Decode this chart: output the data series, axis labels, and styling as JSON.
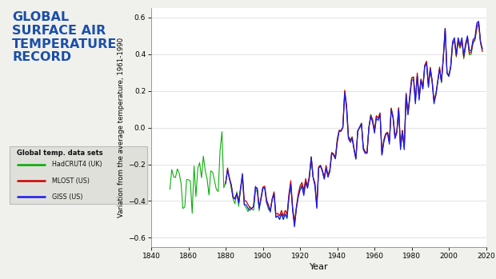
{
  "title_lines": [
    "GLOBAL",
    "SURFACE AIR",
    "TEMPERATURE",
    "RECORD"
  ],
  "title_color": "#1a4faa",
  "legend_title": "Global temp. data sets",
  "legend_entries": [
    "HadCRUT4 (UK)",
    "MLOST (US)",
    "GISS (US)"
  ],
  "legend_colors": [
    "#00aa00",
    "#cc0000",
    "#1a1aee"
  ],
  "ylabel": "Variation from the average temperature, 1961-1990",
  "xlabel": "Year",
  "xlim": [
    1840,
    2020
  ],
  "ylim": [
    -0.65,
    0.65
  ],
  "yticks": [
    -0.6,
    -0.4,
    -0.2,
    0.0,
    0.2,
    0.4,
    0.6
  ],
  "xticks": [
    1840,
    1860,
    1880,
    1900,
    1920,
    1940,
    1960,
    1980,
    2000,
    2020
  ],
  "bg_color": "#f0f0ec",
  "plot_bg": "#ffffff",
  "hadcrut4": {
    "years": [
      1850,
      1851,
      1852,
      1853,
      1854,
      1855,
      1856,
      1857,
      1858,
      1859,
      1860,
      1861,
      1862,
      1863,
      1864,
      1865,
      1866,
      1867,
      1868,
      1869,
      1870,
      1871,
      1872,
      1873,
      1874,
      1875,
      1876,
      1877,
      1878,
      1879,
      1880,
      1881,
      1882,
      1883,
      1884,
      1885,
      1886,
      1887,
      1888,
      1889,
      1890,
      1891,
      1892,
      1893,
      1894,
      1895,
      1896,
      1897,
      1898,
      1899,
      1900,
      1901,
      1902,
      1903,
      1904,
      1905,
      1906,
      1907,
      1908,
      1909,
      1910,
      1911,
      1912,
      1913,
      1914,
      1915,
      1916,
      1917,
      1918,
      1919,
      1920,
      1921,
      1922,
      1923,
      1924,
      1925,
      1926,
      1927,
      1928,
      1929,
      1930,
      1931,
      1932,
      1933,
      1934,
      1935,
      1936,
      1937,
      1938,
      1939,
      1940,
      1941,
      1942,
      1943,
      1944,
      1945,
      1946,
      1947,
      1948,
      1949,
      1950,
      1951,
      1952,
      1953,
      1954,
      1955,
      1956,
      1957,
      1958,
      1959,
      1960,
      1961,
      1962,
      1963,
      1964,
      1965,
      1966,
      1967,
      1968,
      1969,
      1970,
      1971,
      1972,
      1973,
      1974,
      1975,
      1976,
      1977,
      1978,
      1979,
      1980,
      1981,
      1982,
      1983,
      1984,
      1985,
      1986,
      1987,
      1988,
      1989,
      1990,
      1991,
      1992,
      1993,
      1994,
      1995,
      1996,
      1997,
      1998,
      1999,
      2000,
      2001,
      2002,
      2003,
      2004,
      2005,
      2006,
      2007,
      2008,
      2009,
      2010,
      2011,
      2012,
      2013,
      2014,
      2015,
      2016,
      2017,
      2018
    ],
    "values": [
      -0.336,
      -0.228,
      -0.268,
      -0.272,
      -0.225,
      -0.247,
      -0.303,
      -0.44,
      -0.433,
      -0.283,
      -0.284,
      -0.291,
      -0.467,
      -0.209,
      -0.376,
      -0.222,
      -0.191,
      -0.273,
      -0.155,
      -0.233,
      -0.279,
      -0.367,
      -0.236,
      -0.242,
      -0.289,
      -0.337,
      -0.348,
      -0.121,
      -0.022,
      -0.328,
      -0.297,
      -0.235,
      -0.276,
      -0.333,
      -0.388,
      -0.415,
      -0.349,
      -0.429,
      -0.339,
      -0.275,
      -0.422,
      -0.436,
      -0.458,
      -0.431,
      -0.444,
      -0.45,
      -0.349,
      -0.34,
      -0.453,
      -0.378,
      -0.326,
      -0.327,
      -0.407,
      -0.447,
      -0.452,
      -0.393,
      -0.355,
      -0.487,
      -0.481,
      -0.501,
      -0.467,
      -0.501,
      -0.473,
      -0.497,
      -0.377,
      -0.305,
      -0.449,
      -0.534,
      -0.444,
      -0.37,
      -0.33,
      -0.31,
      -0.356,
      -0.288,
      -0.329,
      -0.272,
      -0.167,
      -0.272,
      -0.31,
      -0.431,
      -0.217,
      -0.21,
      -0.235,
      -0.281,
      -0.218,
      -0.267,
      -0.233,
      -0.139,
      -0.147,
      -0.169,
      -0.066,
      -0.015,
      -0.016,
      0.001,
      0.198,
      0.121,
      -0.047,
      -0.065,
      -0.05,
      -0.117,
      -0.173,
      -0.016,
      0.005,
      0.024,
      -0.108,
      -0.131,
      -0.135,
      0.003,
      0.072,
      0.042,
      -0.023,
      0.061,
      0.052,
      0.074,
      -0.143,
      -0.073,
      -0.036,
      -0.027,
      -0.079,
      0.103,
      0.06,
      -0.046,
      -0.025,
      0.106,
      -0.101,
      -0.016,
      -0.111,
      0.183,
      0.073,
      0.172,
      0.269,
      0.272,
      0.145,
      0.292,
      0.159,
      0.257,
      0.214,
      0.335,
      0.357,
      0.228,
      0.322,
      0.249,
      0.143,
      0.174,
      0.246,
      0.319,
      0.244,
      0.376,
      0.539,
      0.293,
      0.279,
      0.323,
      0.451,
      0.469,
      0.385,
      0.468,
      0.432,
      0.468,
      0.374,
      0.441,
      0.487,
      0.396,
      0.4,
      0.459,
      0.476,
      0.539,
      0.57,
      0.459,
      0.427
    ]
  },
  "mlost": {
    "years": [
      1880,
      1881,
      1882,
      1883,
      1884,
      1885,
      1886,
      1887,
      1888,
      1889,
      1890,
      1891,
      1892,
      1893,
      1894,
      1895,
      1896,
      1897,
      1898,
      1899,
      1900,
      1901,
      1902,
      1903,
      1904,
      1905,
      1906,
      1907,
      1908,
      1909,
      1910,
      1911,
      1912,
      1913,
      1914,
      1915,
      1916,
      1917,
      1918,
      1919,
      1920,
      1921,
      1922,
      1923,
      1924,
      1925,
      1926,
      1927,
      1928,
      1929,
      1930,
      1931,
      1932,
      1933,
      1934,
      1935,
      1936,
      1937,
      1938,
      1939,
      1940,
      1941,
      1942,
      1943,
      1944,
      1945,
      1946,
      1947,
      1948,
      1949,
      1950,
      1951,
      1952,
      1953,
      1954,
      1955,
      1956,
      1957,
      1958,
      1959,
      1960,
      1961,
      1962,
      1963,
      1964,
      1965,
      1966,
      1967,
      1968,
      1969,
      1970,
      1971,
      1972,
      1973,
      1974,
      1975,
      1976,
      1977,
      1978,
      1979,
      1980,
      1981,
      1982,
      1983,
      1984,
      1985,
      1986,
      1987,
      1988,
      1989,
      1990,
      1991,
      1992,
      1993,
      1994,
      1995,
      1996,
      1997,
      1998,
      1999,
      2000,
      2001,
      2002,
      2003,
      2004,
      2005,
      2006,
      2007,
      2008,
      2009,
      2010,
      2011,
      2012,
      2013,
      2014,
      2015,
      2016,
      2017,
      2018
    ],
    "values": [
      -0.307,
      -0.22,
      -0.272,
      -0.313,
      -0.381,
      -0.382,
      -0.358,
      -0.405,
      -0.333,
      -0.257,
      -0.398,
      -0.4,
      -0.419,
      -0.436,
      -0.44,
      -0.429,
      -0.329,
      -0.329,
      -0.434,
      -0.384,
      -0.324,
      -0.319,
      -0.394,
      -0.421,
      -0.451,
      -0.388,
      -0.35,
      -0.472,
      -0.467,
      -0.481,
      -0.451,
      -0.482,
      -0.451,
      -0.472,
      -0.363,
      -0.289,
      -0.432,
      -0.518,
      -0.431,
      -0.362,
      -0.317,
      -0.299,
      -0.341,
      -0.278,
      -0.319,
      -0.261,
      -0.159,
      -0.27,
      -0.302,
      -0.432,
      -0.213,
      -0.205,
      -0.232,
      -0.271,
      -0.206,
      -0.259,
      -0.229,
      -0.135,
      -0.143,
      -0.162,
      -0.062,
      -0.015,
      -0.016,
      0.004,
      0.204,
      0.121,
      -0.05,
      -0.07,
      -0.051,
      -0.112,
      -0.168,
      -0.017,
      0.0,
      0.024,
      -0.111,
      -0.133,
      -0.136,
      0.001,
      0.068,
      0.043,
      -0.018,
      0.065,
      0.052,
      0.081,
      -0.146,
      -0.067,
      -0.033,
      -0.025,
      -0.073,
      0.107,
      0.058,
      -0.046,
      -0.02,
      0.109,
      -0.105,
      -0.014,
      -0.109,
      0.188,
      0.077,
      0.178,
      0.272,
      0.277,
      0.148,
      0.298,
      0.162,
      0.265,
      0.219,
      0.34,
      0.362,
      0.234,
      0.329,
      0.257,
      0.148,
      0.183,
      0.254,
      0.33,
      0.252,
      0.382,
      0.541,
      0.3,
      0.285,
      0.33,
      0.46,
      0.475,
      0.39,
      0.478,
      0.438,
      0.478,
      0.385,
      0.449,
      0.491,
      0.404,
      0.412,
      0.468,
      0.48,
      0.542,
      0.574,
      0.465,
      0.415
    ]
  },
  "giss": {
    "years": [
      1880,
      1881,
      1882,
      1883,
      1884,
      1885,
      1886,
      1887,
      1888,
      1889,
      1890,
      1891,
      1892,
      1893,
      1894,
      1895,
      1896,
      1897,
      1898,
      1899,
      1900,
      1901,
      1902,
      1903,
      1904,
      1905,
      1906,
      1907,
      1908,
      1909,
      1910,
      1911,
      1912,
      1913,
      1914,
      1915,
      1916,
      1917,
      1918,
      1919,
      1920,
      1921,
      1922,
      1923,
      1924,
      1925,
      1926,
      1927,
      1928,
      1929,
      1930,
      1931,
      1932,
      1933,
      1934,
      1935,
      1936,
      1937,
      1938,
      1939,
      1940,
      1941,
      1942,
      1943,
      1944,
      1945,
      1946,
      1947,
      1948,
      1949,
      1950,
      1951,
      1952,
      1953,
      1954,
      1955,
      1956,
      1957,
      1958,
      1959,
      1960,
      1961,
      1962,
      1963,
      1964,
      1965,
      1966,
      1967,
      1968,
      1969,
      1970,
      1971,
      1972,
      1973,
      1974,
      1975,
      1976,
      1977,
      1978,
      1979,
      1980,
      1981,
      1982,
      1983,
      1984,
      1985,
      1986,
      1987,
      1988,
      1989,
      1990,
      1991,
      1992,
      1993,
      1994,
      1995,
      1996,
      1997,
      1998,
      1999,
      2000,
      2001,
      2002,
      2003,
      2004,
      2005,
      2006,
      2007,
      2008,
      2009,
      2010,
      2011,
      2012,
      2013,
      2014,
      2015,
      2016,
      2017,
      2018
    ],
    "values": [
      -0.3,
      -0.23,
      -0.28,
      -0.31,
      -0.38,
      -0.39,
      -0.36,
      -0.41,
      -0.33,
      -0.25,
      -0.42,
      -0.42,
      -0.44,
      -0.45,
      -0.44,
      -0.43,
      -0.32,
      -0.34,
      -0.44,
      -0.39,
      -0.33,
      -0.33,
      -0.41,
      -0.43,
      -0.46,
      -0.39,
      -0.36,
      -0.49,
      -0.48,
      -0.5,
      -0.47,
      -0.5,
      -0.47,
      -0.49,
      -0.38,
      -0.31,
      -0.45,
      -0.54,
      -0.44,
      -0.38,
      -0.34,
      -0.32,
      -0.37,
      -0.3,
      -0.33,
      -0.27,
      -0.16,
      -0.27,
      -0.32,
      -0.44,
      -0.22,
      -0.21,
      -0.24,
      -0.28,
      -0.22,
      -0.27,
      -0.24,
      -0.14,
      -0.15,
      -0.17,
      -0.08,
      -0.02,
      -0.02,
      0.0,
      0.19,
      0.1,
      -0.06,
      -0.08,
      -0.06,
      -0.12,
      -0.17,
      -0.02,
      0.0,
      0.02,
      -0.12,
      -0.14,
      -0.14,
      0.0,
      0.06,
      0.03,
      -0.03,
      0.05,
      0.04,
      0.07,
      -0.15,
      -0.08,
      -0.04,
      -0.03,
      -0.09,
      0.1,
      0.05,
      -0.06,
      -0.03,
      0.1,
      -0.12,
      -0.02,
      -0.12,
      0.18,
      0.07,
      0.16,
      0.26,
      0.26,
      0.13,
      0.28,
      0.15,
      0.26,
      0.21,
      0.33,
      0.35,
      0.22,
      0.32,
      0.25,
      0.13,
      0.18,
      0.25,
      0.32,
      0.25,
      0.38,
      0.54,
      0.3,
      0.28,
      0.34,
      0.47,
      0.49,
      0.4,
      0.49,
      0.45,
      0.49,
      0.39,
      0.46,
      0.5,
      0.42,
      0.42,
      0.48,
      0.49,
      0.57,
      0.58,
      0.47,
      0.43
    ]
  }
}
